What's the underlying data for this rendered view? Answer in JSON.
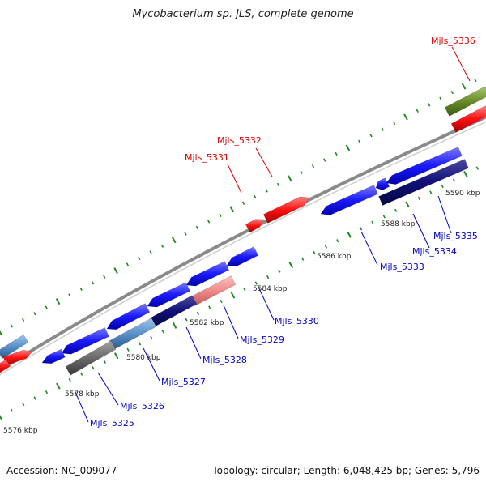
{
  "title": "Mycobacterium sp. JLS, complete genome",
  "footer": {
    "accession": "Accession: NC_009077",
    "summary": "Topology: circular; Length: 6,048,425 bp; Genes: 5,796"
  },
  "colors": {
    "backbone": "#8a8a8a",
    "tick": "#1f8a1f",
    "fwd_label": "#dd0000",
    "rev_label": "#0000c8",
    "scale_label": "#222222"
  },
  "scale_labels": [
    {
      "text": "5576 kbp",
      "kbp": 5576
    },
    {
      "text": "5578 kbp",
      "kbp": 5578
    },
    {
      "text": "5580 kbp",
      "kbp": 5580
    },
    {
      "text": "5582 kbp",
      "kbp": 5582
    },
    {
      "text": "5584 kbp",
      "kbp": 5584
    },
    {
      "text": "5586 kbp",
      "kbp": 5586
    },
    {
      "text": "5588 kbp",
      "kbp": 5588
    },
    {
      "text": "5590 kbp",
      "kbp": 5590
    }
  ],
  "gene_labels": [
    {
      "name": "Mjls_5336",
      "strand": "forward"
    },
    {
      "name": "Mjls_5332",
      "strand": "forward"
    },
    {
      "name": "Mjls_5331",
      "strand": "forward"
    },
    {
      "name": "Mjls_5335",
      "strand": "reverse"
    },
    {
      "name": "Mjls_5334",
      "strand": "reverse"
    },
    {
      "name": "Mjls_5333",
      "strand": "reverse"
    },
    {
      "name": "Mjls_5330",
      "strand": "reverse"
    },
    {
      "name": "Mjls_5329",
      "strand": "reverse"
    },
    {
      "name": "Mjls_5328",
      "strand": "reverse"
    },
    {
      "name": "Mjls_5327",
      "strand": "reverse"
    },
    {
      "name": "Mjls_5326",
      "strand": "reverse"
    },
    {
      "name": "Mjls_5325",
      "strand": "reverse"
    }
  ]
}
